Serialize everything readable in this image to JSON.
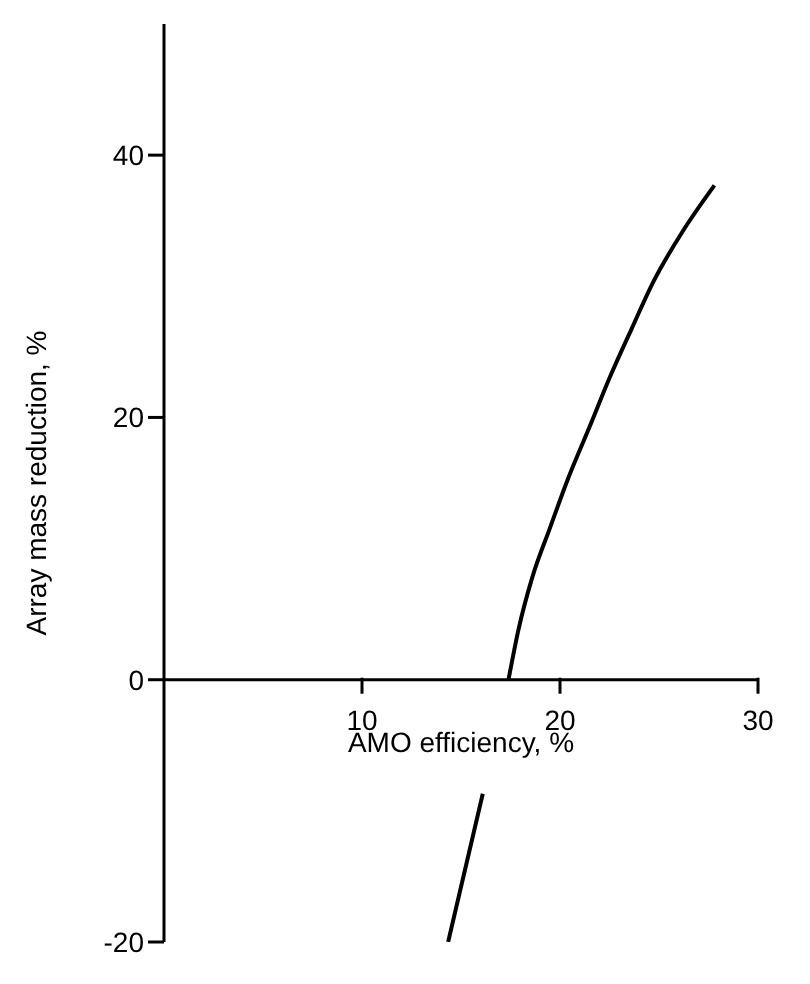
{
  "chart_data": {
    "type": "line",
    "xlabel": "AMO efficiency, %",
    "ylabel": "Array mass reduction, %",
    "x": [
      14.35,
      16.1,
      16.7,
      17.4,
      17.9,
      18.6,
      19.5,
      20.4,
      21.5,
      22.5,
      23.6,
      24.7,
      26.2,
      27.8
    ],
    "series": [
      {
        "color": "#000000",
        "values": [
          -20,
          -8.7,
          null,
          0,
          3.8,
          7.8,
          11.6,
          15.3,
          19.3,
          23,
          26.7,
          30.3,
          34.2,
          37.7
        ]
      }
    ],
    "xlim": [
      0,
      30
    ],
    "xticks": [
      10,
      20,
      30
    ],
    "ylim": [
      -20,
      50
    ],
    "yticks": [
      -20,
      0,
      20,
      40
    ],
    "marker": "none",
    "line_style": "solid"
  }
}
